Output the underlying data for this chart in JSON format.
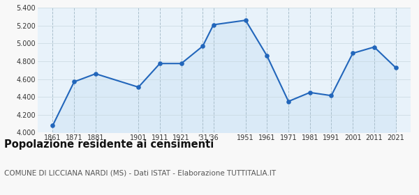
{
  "years": [
    1861,
    1871,
    1881,
    1901,
    1911,
    1921,
    1931,
    1936,
    1951,
    1961,
    1971,
    1981,
    1991,
    2001,
    2011,
    2021
  ],
  "population": [
    4080,
    4570,
    4660,
    4510,
    4775,
    4775,
    4970,
    5210,
    5260,
    4860,
    4350,
    4450,
    4415,
    4890,
    4960,
    4730
  ],
  "line_color": "#2266bb",
  "fill_color": "#daeaf7",
  "marker_color": "#2266bb",
  "grid_color_x": "#aabfcc",
  "grid_color_y": "#c8d8e0",
  "background_color": "#e8f2fa",
  "outer_background": "#f8f8f8",
  "ylim": [
    4000,
    5400
  ],
  "yticks": [
    4000,
    4200,
    4400,
    4600,
    4800,
    5000,
    5200,
    5400
  ],
  "xlim": [
    1854,
    2028
  ],
  "x_tick_positions": [
    1861,
    1871,
    1881,
    1901,
    1911,
    1921,
    1931,
    1936,
    1951,
    1961,
    1971,
    1981,
    1991,
    2001,
    2011,
    2021
  ],
  "x_tick_labels": [
    "1861",
    "1871",
    "1881",
    "1901",
    "1911",
    "1921",
    "'31",
    "'36",
    "1951",
    "1961",
    "1971",
    "1981",
    "1991",
    "2001",
    "2011",
    "2021"
  ],
  "title": "Popolazione residente ai censimenti",
  "subtitle": "COMUNE DI LICCIANA NARDI (MS) - Dati ISTAT - Elaborazione TUTTITALIA.IT",
  "title_fontsize": 10.5,
  "subtitle_fontsize": 7.5,
  "tick_fontsize": 7,
  "ytick_fontsize": 7
}
